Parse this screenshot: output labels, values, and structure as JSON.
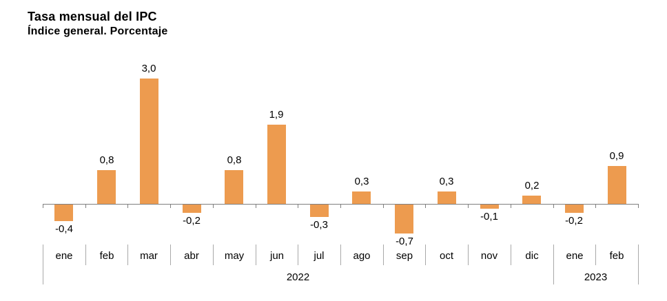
{
  "title": "Tasa mensual del IPC",
  "subtitle": "Índice general. Porcentaje",
  "chart_data": {
    "type": "bar",
    "categories": [
      "ene",
      "feb",
      "mar",
      "abr",
      "may",
      "jun",
      "jul",
      "ago",
      "sep",
      "oct",
      "nov",
      "dic",
      "ene",
      "feb"
    ],
    "values": [
      -0.4,
      0.8,
      3.0,
      -0.2,
      0.8,
      1.9,
      -0.3,
      0.3,
      -0.7,
      0.3,
      -0.1,
      0.2,
      -0.2,
      0.9
    ],
    "value_labels": [
      "-0,4",
      "0,8",
      "3,0",
      "-0,2",
      "0,8",
      "1,9",
      "-0,3",
      "0,3",
      "-0,7",
      "0,3",
      "-0,1",
      "0,2",
      "-0,2",
      "0,9"
    ],
    "groups": [
      {
        "label": "2022",
        "start": 0,
        "end": 11
      },
      {
        "label": "2023",
        "start": 12,
        "end": 13
      }
    ],
    "title": "Tasa mensual del IPC",
    "subtitle": "Índice general. Porcentaje",
    "xlabel": "",
    "ylabel": "",
    "ylim": [
      -0.8,
      3.2
    ],
    "grid": false,
    "legend": null,
    "bar_color": "#ED9B4F",
    "axis_color": "#7F7F7F",
    "separator_color": "#A8A8A8",
    "text_color": "#000000"
  }
}
